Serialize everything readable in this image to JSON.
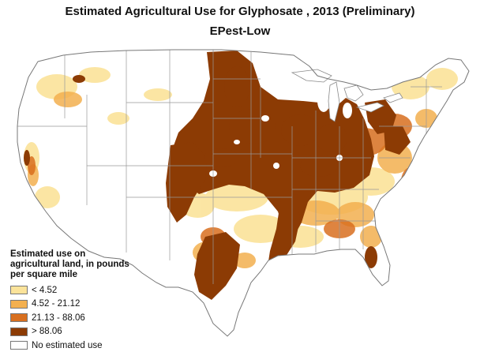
{
  "header": {
    "title": "Estimated Agricultural Use for Glyphosate , 2013 (Preliminary)",
    "subtitle": "EPest-Low"
  },
  "legend": {
    "title": "Estimated use on agricultural land, in pounds per square mile",
    "items": [
      {
        "label": "< 4.52",
        "color": "#fbe39a"
      },
      {
        "label": "4.52 - 21.12",
        "color": "#f3b04f"
      },
      {
        "label": "21.13 - 88.06",
        "color": "#d86f1f"
      },
      {
        "label": "> 88.06",
        "color": "#8c3b04"
      },
      {
        "label": "No estimated use",
        "color": "#ffffff"
      }
    ]
  },
  "map": {
    "region": "conterminous-united-states",
    "boundary_color": "#888888",
    "state_line_color": "#aaaaaa",
    "water_color": "#ffffff"
  }
}
